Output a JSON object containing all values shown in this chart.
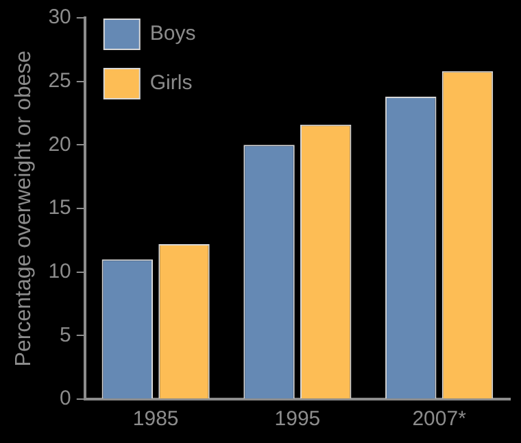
{
  "chart_data": {
    "type": "bar",
    "ylabel": "Percentage overweight or obese",
    "categories": [
      "1985",
      "1995",
      "2007*"
    ],
    "series": [
      {
        "name": "Boys",
        "color": "#6589b4",
        "values": [
          11,
          20,
          23.8
        ]
      },
      {
        "name": "Girls",
        "color": "#fdbd55",
        "values": [
          12.2,
          21.6,
          25.8
        ]
      }
    ],
    "ylim": [
      0,
      30
    ],
    "yticks": [
      0,
      5,
      10,
      15,
      20,
      25,
      30
    ],
    "grid": false,
    "legend": "top left"
  }
}
